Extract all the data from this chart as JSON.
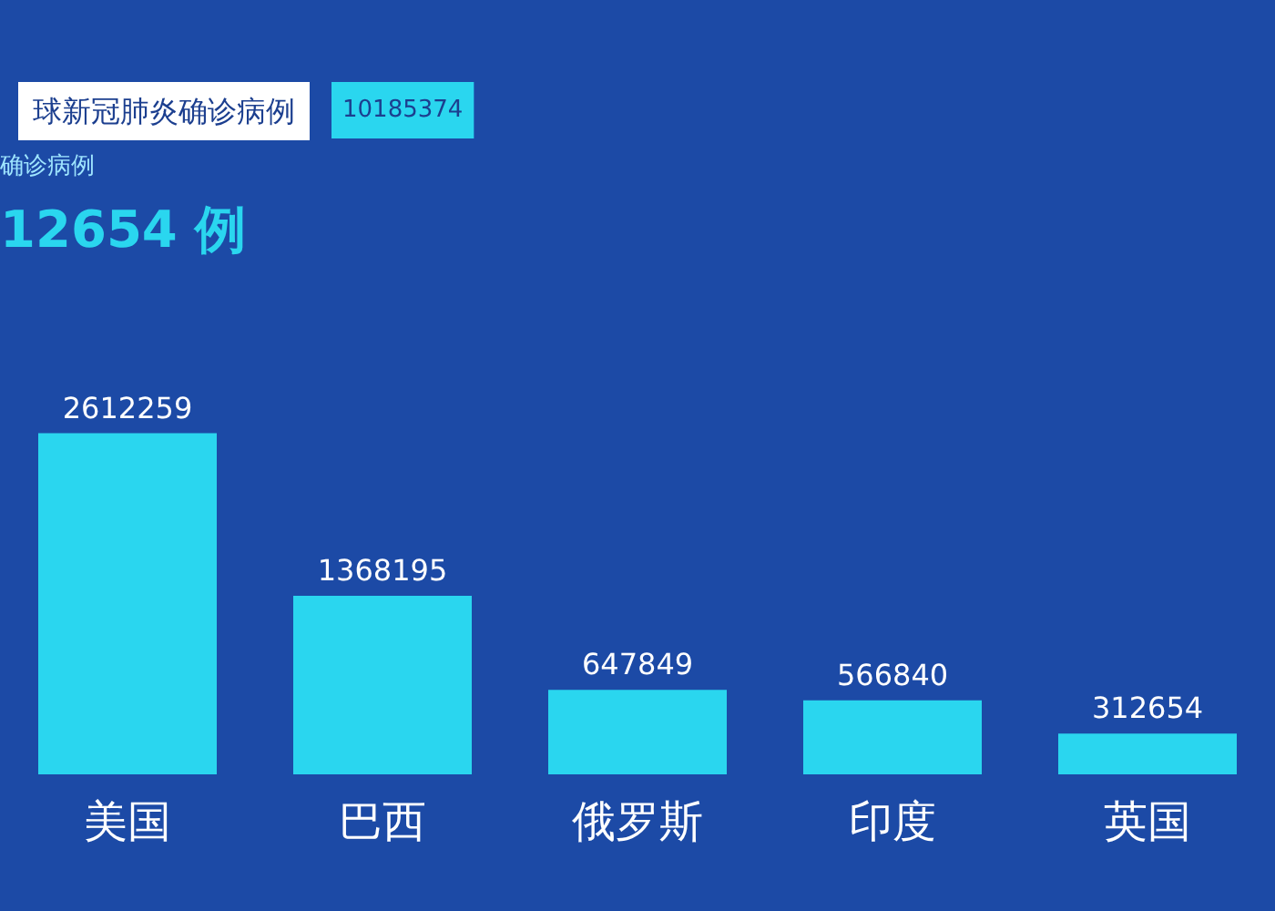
{
  "chart_data": {
    "type": "bar",
    "annotations": [
      "球新冠肺炎确诊病例",
      "10185374",
      "确诊病例",
      "12654 例"
    ],
    "categories": [
      "美国",
      "巴西",
      "俄罗斯",
      "印度",
      "英国"
    ],
    "values": [
      2612259,
      1368195,
      647849,
      566840,
      312654
    ],
    "color": "#2ad6ef",
    "data_labels": true
  }
}
